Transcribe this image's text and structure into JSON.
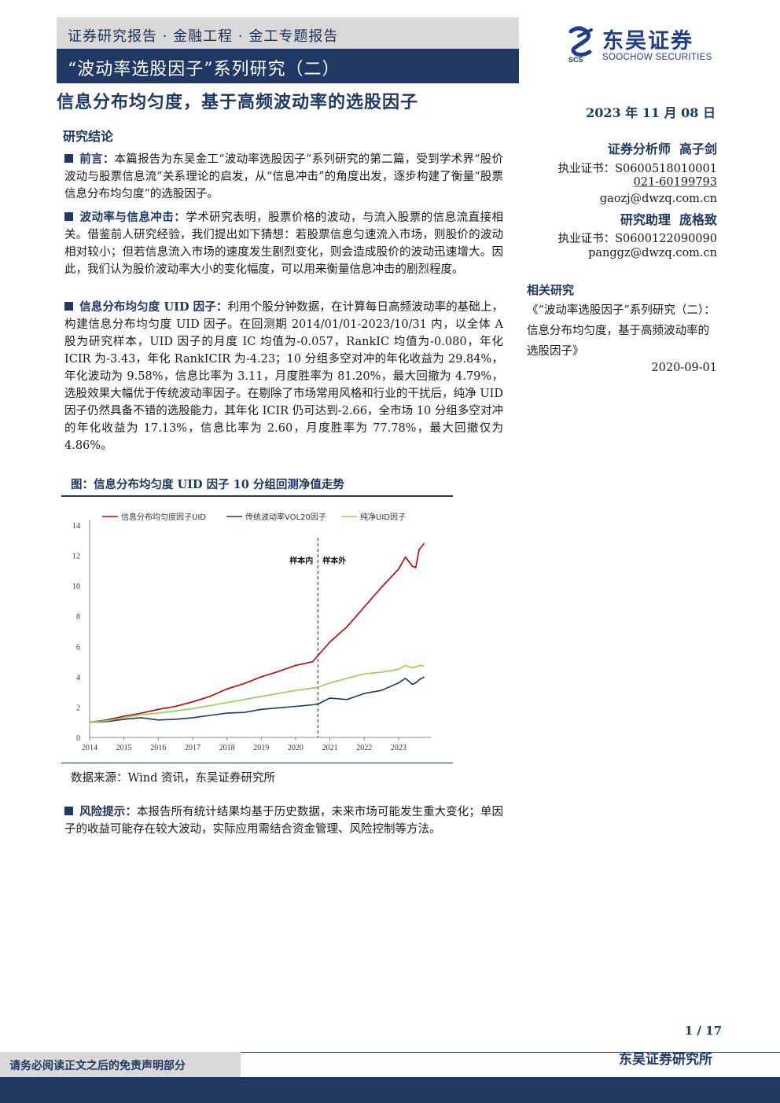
{
  "header": {
    "series_line": "证券研究报告 · 金融工程 · 金工专题报告",
    "series_title": "“波动率选股因子”系列研究（二）",
    "main_title": "信息分布均匀度，基于高频波动率的选股因子",
    "date": "2023 年 11 月 08 日"
  },
  "logo": {
    "cn": "东吴证券",
    "en": "SOOCHOW SECURITIES",
    "mark": "SCS",
    "brand_color": "#1f3f8a"
  },
  "analysts": [
    {
      "role": "证券分析师",
      "name": "高子剑",
      "cert": "执业证书：S0600518010001",
      "phone": "021-60199793",
      "email": "gaozj@dwzq.com.cn"
    },
    {
      "role": "研究助理",
      "name": "庞格致",
      "cert": "执业证书：S0600122090090",
      "email": "panggz@dwzq.com.cn"
    }
  ],
  "related": {
    "title": "相关研究",
    "text": "《“波动率选股因子”系列研究（二）：信息分布均匀度，基于高频波动率的选股因子》",
    "date": "2020-09-01"
  },
  "conclusion": {
    "title": "研究结论",
    "items": [
      {
        "lead": "前言：",
        "text": "本篇报告为东吴金工“波动率选股因子”系列研究的第二篇，受到学术界“股价波动与股票信息流”关系理论的启发，从“信息冲击”的角度出发，逐步构建了衡量“股票信息分布均匀度”的选股因子。"
      },
      {
        "lead": "波动率与信息冲击：",
        "text": "学术研究表明，股票价格的波动，与流入股票的信息流直接相关。借鉴前人研究经验，我们提出如下猜想：若股票信息匀速流入市场，则股价的波动相对较小；但若信息流入市场的速度发生剧烈变化，则会造成股价的波动迅速增大。因此，我们认为股价波动率大小的变化幅度，可以用来衡量信息冲击的剧烈程度。"
      },
      {
        "lead": "信息分布均匀度 UID 因子：",
        "text": "利用个股分钟数据，在计算每日高频波动率的基础上，构建信息分布均匀度 UID 因子。在回测期 2014/01/01-2023/10/31 内，以全体 A 股为研究样本，UID 因子的月度 IC 均值为-0.057，RankIC 均值为-0.080，年化 ICIR 为-3.43，年化 RankICIR 为-4.23；10 分组多空对冲的年化收益为 29.84%，年化波动为 9.58%，信息比率为 3.11，月度胜率为 81.20%，最大回撤为 4.79%，选股效果大幅优于传统波动率因子。在剔除了市场常用风格和行业的干扰后，纯净 UID 因子仍然具备不错的选股能力，其年化 ICIR 仍可达到-2.66，全市场 10 分组多空对冲的年化收益为 17.13%，信息比率为 2.60，月度胜率为 77.78%，最大回撤仅为 4.86%。"
      }
    ]
  },
  "figure": {
    "title": "图：信息分布均匀度 UID 因子 10 分组回测净值走势",
    "source": "数据来源：Wind 资讯，东吴证券研究所"
  },
  "chart_data": {
    "type": "line",
    "title": "",
    "xlabel": "",
    "ylabel": "",
    "xlim": [
      2014.0,
      2023.85
    ],
    "ylim": [
      0,
      14
    ],
    "y_ticks": [
      0,
      2,
      4,
      6,
      8,
      10,
      12,
      14
    ],
    "x_ticks": [
      "2014",
      "2015",
      "2016",
      "2017",
      "2018",
      "2019",
      "2020",
      "2021",
      "2022",
      "2023"
    ],
    "grid": false,
    "legend_position": "top",
    "annotation": {
      "x": 2020.65,
      "left_label": "样本内",
      "right_label": "样本外"
    },
    "x": [
      2014.0,
      2014.5,
      2015.0,
      2015.5,
      2016.0,
      2016.5,
      2017.0,
      2017.5,
      2018.0,
      2018.5,
      2019.0,
      2019.5,
      2020.0,
      2020.5,
      2020.65,
      2021.0,
      2021.5,
      2022.0,
      2022.5,
      2023.0,
      2023.2,
      2023.4,
      2023.5,
      2023.6,
      2023.75
    ],
    "series": [
      {
        "name": "信息分布均匀度因子UID",
        "color": "#c00000",
        "values": [
          1.0,
          1.15,
          1.4,
          1.6,
          1.85,
          2.05,
          2.35,
          2.7,
          3.2,
          3.55,
          4.0,
          4.35,
          4.75,
          5.0,
          5.4,
          6.3,
          7.3,
          8.6,
          9.9,
          11.1,
          11.9,
          11.3,
          11.2,
          12.4,
          12.8
        ]
      },
      {
        "name": "传统波动率VOL20因子",
        "color": "#1f3864",
        "values": [
          1.0,
          1.05,
          1.2,
          1.3,
          1.15,
          1.2,
          1.3,
          1.45,
          1.6,
          1.65,
          1.85,
          1.95,
          2.05,
          2.15,
          2.2,
          2.6,
          2.5,
          2.9,
          3.1,
          3.6,
          3.9,
          3.5,
          3.6,
          3.8,
          4.0
        ]
      },
      {
        "name": "纯净UID因子",
        "color": "#92d050",
        "values": [
          1.0,
          1.1,
          1.3,
          1.5,
          1.6,
          1.75,
          1.9,
          2.1,
          2.3,
          2.5,
          2.7,
          2.9,
          3.1,
          3.25,
          3.3,
          3.6,
          3.9,
          4.2,
          4.3,
          4.5,
          4.75,
          4.6,
          4.65,
          4.75,
          4.7
        ]
      }
    ]
  },
  "risk": {
    "lead": "风险提示：",
    "text": "本报告所有统计结果均基于历史数据，未来市场可能发生重大变化；单因子的收益可能存在较大波动，实际应用需结合资金管理、风险控制等方法。"
  },
  "footer": {
    "page": "1 / 17",
    "institution": "东吴证券研究所",
    "disclaimer": "请务必阅读正文之后的免责声明部分",
    "accent": "#1f3864"
  }
}
